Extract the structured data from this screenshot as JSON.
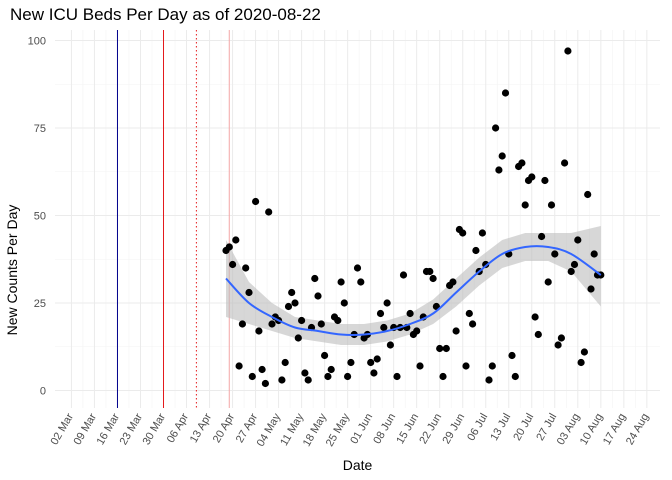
{
  "chart_data": {
    "type": "scatter",
    "title": "New ICU Beds Per Day as of 2020-08-22",
    "xlabel": "Date",
    "ylabel": "New Counts Per Day",
    "ylim": [
      -5,
      103
    ],
    "xlim": [
      "2020-02-26",
      "2020-08-28"
    ],
    "grid": true,
    "legend": "none",
    "y_ticks": [
      0,
      25,
      50,
      75,
      100
    ],
    "x_ticks": [
      {
        "date": "2020-03-02",
        "label": "02 Mar"
      },
      {
        "date": "2020-03-09",
        "label": "09 Mar"
      },
      {
        "date": "2020-03-16",
        "label": "16 Mar"
      },
      {
        "date": "2020-03-23",
        "label": "23 Mar"
      },
      {
        "date": "2020-03-30",
        "label": "30 Mar"
      },
      {
        "date": "2020-04-06",
        "label": "06 Apr"
      },
      {
        "date": "2020-04-13",
        "label": "13 Apr"
      },
      {
        "date": "2020-04-20",
        "label": "20 Apr"
      },
      {
        "date": "2020-04-27",
        "label": "27 Apr"
      },
      {
        "date": "2020-05-04",
        "label": "04 May"
      },
      {
        "date": "2020-05-11",
        "label": "11 May"
      },
      {
        "date": "2020-05-18",
        "label": "18 May"
      },
      {
        "date": "2020-05-25",
        "label": "25 May"
      },
      {
        "date": "2020-06-01",
        "label": "01 Jun"
      },
      {
        "date": "2020-06-08",
        "label": "08 Jun"
      },
      {
        "date": "2020-06-15",
        "label": "15 Jun"
      },
      {
        "date": "2020-06-22",
        "label": "22 Jun"
      },
      {
        "date": "2020-06-29",
        "label": "29 Jun"
      },
      {
        "date": "2020-07-06",
        "label": "06 Jul"
      },
      {
        "date": "2020-07-13",
        "label": "13 Jul"
      },
      {
        "date": "2020-07-20",
        "label": "20 Jul"
      },
      {
        "date": "2020-07-27",
        "label": "27 Jul"
      },
      {
        "date": "2020-08-03",
        "label": "03 Aug"
      },
      {
        "date": "2020-08-10",
        "label": "10 Aug"
      },
      {
        "date": "2020-08-17",
        "label": "17 Aug"
      },
      {
        "date": "2020-08-24",
        "label": "24 Aug"
      }
    ],
    "vlines": [
      {
        "date": "2020-03-16",
        "color": "#00008b",
        "style": "solid"
      },
      {
        "date": "2020-03-30",
        "color": "#e41a1c",
        "style": "solid"
      },
      {
        "date": "2020-04-09",
        "color": "#e41a1c",
        "style": "dotted"
      },
      {
        "date": "2020-04-19",
        "color": "#f4a6a6",
        "style": "solid"
      }
    ],
    "colors": {
      "points": "#000000",
      "smooth_line": "#3366ff",
      "ribbon": "#bdbdbd",
      "grid": "#ebebeb"
    },
    "points": [
      [
        "2020-04-18",
        40
      ],
      [
        "2020-04-19",
        41
      ],
      [
        "2020-04-20",
        36
      ],
      [
        "2020-04-21",
        43
      ],
      [
        "2020-04-22",
        7
      ],
      [
        "2020-04-23",
        19
      ],
      [
        "2020-04-24",
        35
      ],
      [
        "2020-04-25",
        28
      ],
      [
        "2020-04-26",
        4
      ],
      [
        "2020-04-27",
        54
      ],
      [
        "2020-04-28",
        17
      ],
      [
        "2020-04-29",
        6
      ],
      [
        "2020-04-30",
        2
      ],
      [
        "2020-05-01",
        51
      ],
      [
        "2020-05-02",
        19
      ],
      [
        "2020-05-03",
        21
      ],
      [
        "2020-05-04",
        20
      ],
      [
        "2020-05-05",
        3
      ],
      [
        "2020-05-06",
        8
      ],
      [
        "2020-05-07",
        24
      ],
      [
        "2020-05-08",
        28
      ],
      [
        "2020-05-09",
        25
      ],
      [
        "2020-05-10",
        15
      ],
      [
        "2020-05-11",
        20
      ],
      [
        "2020-05-12",
        5
      ],
      [
        "2020-05-13",
        3
      ],
      [
        "2020-05-14",
        18
      ],
      [
        "2020-05-15",
        32
      ],
      [
        "2020-05-16",
        27
      ],
      [
        "2020-05-17",
        19
      ],
      [
        "2020-05-18",
        10
      ],
      [
        "2020-05-19",
        4
      ],
      [
        "2020-05-20",
        6
      ],
      [
        "2020-05-21",
        21
      ],
      [
        "2020-05-22",
        20
      ],
      [
        "2020-05-23",
        31
      ],
      [
        "2020-05-24",
        25
      ],
      [
        "2020-05-25",
        4
      ],
      [
        "2020-05-26",
        8
      ],
      [
        "2020-05-27",
        16
      ],
      [
        "2020-05-28",
        35
      ],
      [
        "2020-05-29",
        31
      ],
      [
        "2020-05-30",
        15
      ],
      [
        "2020-05-31",
        16
      ],
      [
        "2020-06-01",
        8
      ],
      [
        "2020-06-02",
        5
      ],
      [
        "2020-06-03",
        9
      ],
      [
        "2020-06-04",
        22
      ],
      [
        "2020-06-05",
        18
      ],
      [
        "2020-06-06",
        25
      ],
      [
        "2020-06-07",
        13
      ],
      [
        "2020-06-08",
        18
      ],
      [
        "2020-06-09",
        4
      ],
      [
        "2020-06-10",
        18
      ],
      [
        "2020-06-11",
        33
      ],
      [
        "2020-06-12",
        18
      ],
      [
        "2020-06-13",
        22
      ],
      [
        "2020-06-14",
        16
      ],
      [
        "2020-06-15",
        17
      ],
      [
        "2020-06-16",
        7
      ],
      [
        "2020-06-17",
        21
      ],
      [
        "2020-06-18",
        34
      ],
      [
        "2020-06-19",
        34
      ],
      [
        "2020-06-20",
        32
      ],
      [
        "2020-06-21",
        24
      ],
      [
        "2020-06-22",
        12
      ],
      [
        "2020-06-23",
        4
      ],
      [
        "2020-06-24",
        12
      ],
      [
        "2020-06-25",
        30
      ],
      [
        "2020-06-26",
        31
      ],
      [
        "2020-06-27",
        17
      ],
      [
        "2020-06-28",
        46
      ],
      [
        "2020-06-29",
        45
      ],
      [
        "2020-06-30",
        7
      ],
      [
        "2020-07-01",
        22
      ],
      [
        "2020-07-02",
        19
      ],
      [
        "2020-07-03",
        40
      ],
      [
        "2020-07-04",
        34
      ],
      [
        "2020-07-05",
        45
      ],
      [
        "2020-07-06",
        36
      ],
      [
        "2020-07-07",
        3
      ],
      [
        "2020-07-08",
        7
      ],
      [
        "2020-07-09",
        75
      ],
      [
        "2020-07-10",
        63
      ],
      [
        "2020-07-11",
        67
      ],
      [
        "2020-07-12",
        85
      ],
      [
        "2020-07-13",
        39
      ],
      [
        "2020-07-14",
        10
      ],
      [
        "2020-07-15",
        4
      ],
      [
        "2020-07-16",
        64
      ],
      [
        "2020-07-17",
        65
      ],
      [
        "2020-07-18",
        53
      ],
      [
        "2020-07-19",
        60
      ],
      [
        "2020-07-20",
        61
      ],
      [
        "2020-07-21",
        21
      ],
      [
        "2020-07-22",
        16
      ],
      [
        "2020-07-23",
        44
      ],
      [
        "2020-07-24",
        60
      ],
      [
        "2020-07-25",
        31
      ],
      [
        "2020-07-26",
        53
      ],
      [
        "2020-07-27",
        39
      ],
      [
        "2020-07-28",
        13
      ],
      [
        "2020-07-29",
        15
      ],
      [
        "2020-07-30",
        65
      ],
      [
        "2020-07-31",
        97
      ],
      [
        "2020-08-01",
        34
      ],
      [
        "2020-08-02",
        36
      ],
      [
        "2020-08-03",
        43
      ],
      [
        "2020-08-04",
        8
      ],
      [
        "2020-08-05",
        11
      ],
      [
        "2020-08-06",
        56
      ],
      [
        "2020-08-07",
        29
      ],
      [
        "2020-08-08",
        39
      ],
      [
        "2020-08-09",
        33
      ],
      [
        "2020-08-10",
        33
      ]
    ],
    "smooth": [
      [
        "2020-04-18",
        32,
        21,
        43
      ],
      [
        "2020-04-25",
        25,
        19,
        31
      ],
      [
        "2020-05-02",
        21,
        17,
        25
      ],
      [
        "2020-05-09",
        18,
        15,
        21
      ],
      [
        "2020-05-16",
        17,
        14,
        20
      ],
      [
        "2020-05-23",
        16,
        13,
        19
      ],
      [
        "2020-05-30",
        16,
        13,
        19
      ],
      [
        "2020-06-06",
        17,
        14,
        20
      ],
      [
        "2020-06-13",
        19,
        16,
        22
      ],
      [
        "2020-06-20",
        22,
        19,
        26
      ],
      [
        "2020-06-27",
        28,
        24,
        32
      ],
      [
        "2020-07-04",
        34,
        30,
        38
      ],
      [
        "2020-07-11",
        39,
        35,
        43
      ],
      [
        "2020-07-18",
        41,
        37,
        45
      ],
      [
        "2020-07-25",
        41,
        37,
        45
      ],
      [
        "2020-08-01",
        39,
        34,
        45
      ],
      [
        "2020-08-10",
        33,
        24,
        47
      ]
    ]
  }
}
